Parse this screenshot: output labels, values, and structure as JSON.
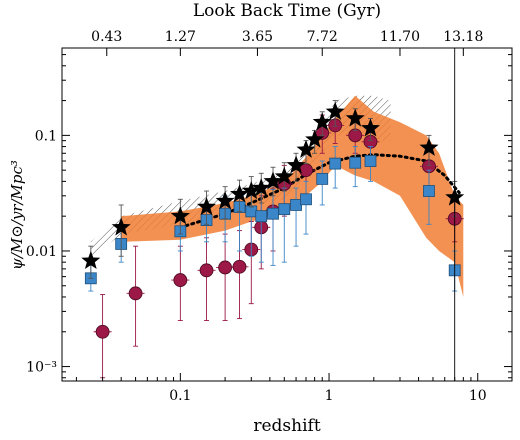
{
  "chart_data": {
    "type": "scatter",
    "xlabel": "redshift",
    "top_axis_label": "Look Back Time (Gyr)",
    "ylabel": "ψ/M⊙/yr/Mpc³",
    "x_scale": "log",
    "y_scale": "log",
    "xlim": [
      0.016,
      17
    ],
    "ylim": [
      0.00075,
      0.57
    ],
    "x_ticks": [
      0.1,
      1,
      10
    ],
    "x_tick_labels": [
      "0.1",
      "1",
      "10"
    ],
    "y_ticks": [
      0.001,
      0.01,
      0.1
    ],
    "y_tick_labels": [
      "10⁻³",
      "0.01",
      "0.1"
    ],
    "top_ticks": [
      {
        "z": 0.032,
        "label": "0.43"
      },
      {
        "z": 0.1,
        "label": "1.27"
      },
      {
        "z": 0.33,
        "label": "3.65"
      },
      {
        "z": 0.9,
        "label": "7.72"
      },
      {
        "z": 3.0,
        "label": "11.70"
      },
      {
        "z": 8.0,
        "label": "13.18"
      }
    ],
    "vertical_line_z": 7.0,
    "colors": {
      "stars": "#000000",
      "squares": "#3a86c8",
      "square_edge": "#1f4f7a",
      "circles": "#9c1846",
      "circle_edge": "#4a0a22",
      "orange_band": "#f07e34",
      "hatch": "#555555",
      "dotted_curve": "#000000"
    },
    "series": [
      {
        "marker": "star",
        "points": [
          {
            "x": 0.025,
            "y": 0.0082,
            "ylo": 0.0058,
            "yhi": 0.011
          },
          {
            "x": 0.04,
            "y": 0.016,
            "ylo": 0.009,
            "yhi": 0.025
          },
          {
            "x": 0.1,
            "y": 0.02,
            "ylo": 0.014,
            "yhi": 0.028
          },
          {
            "x": 0.15,
            "y": 0.024,
            "ylo": 0.017,
            "yhi": 0.033
          },
          {
            "x": 0.2,
            "y": 0.027,
            "ylo": 0.019,
            "yhi": 0.036
          },
          {
            "x": 0.25,
            "y": 0.031,
            "ylo": 0.022,
            "yhi": 0.041
          },
          {
            "x": 0.3,
            "y": 0.033,
            "ylo": 0.024,
            "yhi": 0.044
          },
          {
            "x": 0.35,
            "y": 0.035,
            "ylo": 0.026,
            "yhi": 0.047
          },
          {
            "x": 0.42,
            "y": 0.04,
            "ylo": 0.03,
            "yhi": 0.053
          },
          {
            "x": 0.5,
            "y": 0.044,
            "ylo": 0.033,
            "yhi": 0.058
          },
          {
            "x": 0.6,
            "y": 0.055,
            "ylo": 0.04,
            "yhi": 0.07
          },
          {
            "x": 0.7,
            "y": 0.075,
            "ylo": 0.057,
            "yhi": 0.09
          },
          {
            "x": 0.8,
            "y": 0.092,
            "ylo": 0.07,
            "yhi": 0.11
          },
          {
            "x": 0.9,
            "y": 0.13,
            "ylo": 0.1,
            "yhi": 0.16
          },
          {
            "x": 1.1,
            "y": 0.16,
            "ylo": 0.12,
            "yhi": 0.2
          },
          {
            "x": 1.5,
            "y": 0.14,
            "ylo": 0.11,
            "yhi": 0.17
          },
          {
            "x": 1.9,
            "y": 0.115,
            "ylo": 0.09,
            "yhi": 0.14
          },
          {
            "x": 4.7,
            "y": 0.078,
            "ylo": 0.055,
            "yhi": 0.1
          },
          {
            "x": 7.0,
            "y": 0.029,
            "ylo": 0.02,
            "yhi": 0.04
          }
        ]
      },
      {
        "marker": "square",
        "points": [
          {
            "x": 0.025,
            "y": 0.0058,
            "ylo": 0.0045,
            "yhi": 0.0075
          },
          {
            "x": 0.04,
            "y": 0.0115,
            "ylo": 0.008,
            "yhi": 0.016
          },
          {
            "x": 0.1,
            "y": 0.0148,
            "ylo": 0.01,
            "yhi": 0.021
          },
          {
            "x": 0.15,
            "y": 0.0185,
            "ylo": 0.012,
            "yhi": 0.026
          },
          {
            "x": 0.2,
            "y": 0.021,
            "ylo": 0.012,
            "yhi": 0.03
          },
          {
            "x": 0.25,
            "y": 0.024,
            "ylo": 0.01,
            "yhi": 0.034
          },
          {
            "x": 0.3,
            "y": 0.022,
            "ylo": 0.009,
            "yhi": 0.034
          },
          {
            "x": 0.35,
            "y": 0.02,
            "ylo": 0.008,
            "yhi": 0.032
          },
          {
            "x": 0.42,
            "y": 0.021,
            "ylo": 0.0075,
            "yhi": 0.034
          },
          {
            "x": 0.5,
            "y": 0.023,
            "ylo": 0.008,
            "yhi": 0.035
          },
          {
            "x": 0.6,
            "y": 0.025,
            "ylo": 0.011,
            "yhi": 0.035
          },
          {
            "x": 0.7,
            "y": 0.028,
            "ylo": 0.014,
            "yhi": 0.04
          },
          {
            "x": 0.9,
            "y": 0.042,
            "ylo": 0.025,
            "yhi": 0.06
          },
          {
            "x": 1.1,
            "y": 0.057,
            "ylo": 0.035,
            "yhi": 0.08
          },
          {
            "x": 1.5,
            "y": 0.058,
            "ylo": 0.036,
            "yhi": 0.08
          },
          {
            "x": 1.9,
            "y": 0.06,
            "ylo": 0.04,
            "yhi": 0.08
          },
          {
            "x": 4.7,
            "y": 0.033,
            "ylo": 0.017,
            "yhi": 0.05
          },
          {
            "x": 7.0,
            "y": 0.0068,
            "ylo": 0.0045,
            "yhi": 0.01
          }
        ]
      },
      {
        "marker": "circle",
        "points": [
          {
            "x": 0.03,
            "y": 0.002,
            "ylo": 0.0008,
            "yhi": 0.0042
          },
          {
            "x": 0.05,
            "y": 0.0043,
            "ylo": 0.0015,
            "yhi": 0.011
          },
          {
            "x": 0.1,
            "y": 0.0056,
            "ylo": 0.0025,
            "yhi": 0.011
          },
          {
            "x": 0.15,
            "y": 0.0068,
            "ylo": 0.0025,
            "yhi": 0.013
          },
          {
            "x": 0.2,
            "y": 0.0072,
            "ylo": 0.0025,
            "yhi": 0.014
          },
          {
            "x": 0.25,
            "y": 0.0073,
            "ylo": 0.0026,
            "yhi": 0.015
          },
          {
            "x": 0.3,
            "y": 0.0103,
            "ylo": 0.0035,
            "yhi": 0.018
          },
          {
            "x": 0.35,
            "y": 0.016,
            "ylo": 0.007,
            "yhi": 0.03
          },
          {
            "x": 0.42,
            "y": 0.022,
            "ylo": 0.01,
            "yhi": 0.035
          },
          {
            "x": 0.5,
            "y": 0.038,
            "ylo": 0.02,
            "yhi": 0.055
          },
          {
            "x": 0.7,
            "y": 0.05,
            "ylo": 0.03,
            "yhi": 0.07
          },
          {
            "x": 0.9,
            "y": 0.105,
            "ylo": 0.07,
            "yhi": 0.15
          },
          {
            "x": 1.1,
            "y": 0.122,
            "ylo": 0.085,
            "yhi": 0.17
          },
          {
            "x": 1.5,
            "y": 0.1,
            "ylo": 0.07,
            "yhi": 0.14
          },
          {
            "x": 1.9,
            "y": 0.088,
            "ylo": 0.06,
            "yhi": 0.12
          },
          {
            "x": 4.7,
            "y": 0.054,
            "ylo": 0.035,
            "yhi": 0.08
          },
          {
            "x": 7.0,
            "y": 0.019,
            "ylo": 0.012,
            "yhi": 0.028
          }
        ]
      }
    ],
    "dotted_curve": [
      {
        "x": 0.1,
        "y": 0.016
      },
      {
        "x": 0.2,
        "y": 0.021
      },
      {
        "x": 0.3,
        "y": 0.026
      },
      {
        "x": 0.5,
        "y": 0.035
      },
      {
        "x": 0.7,
        "y": 0.046
      },
      {
        "x": 1.0,
        "y": 0.058
      },
      {
        "x": 1.5,
        "y": 0.066
      },
      {
        "x": 2.0,
        "y": 0.068
      },
      {
        "x": 3.0,
        "y": 0.066
      },
      {
        "x": 4.5,
        "y": 0.06
      },
      {
        "x": 6.0,
        "y": 0.045
      },
      {
        "x": 7.5,
        "y": 0.032
      }
    ],
    "hatched_band": {
      "x": [
        0.025,
        0.04,
        0.1,
        0.2,
        0.3,
        0.5,
        0.7,
        0.9,
        1.1,
        1.5,
        2.0,
        2.6
      ],
      "lo": [
        0.0085,
        0.014,
        0.017,
        0.021,
        0.024,
        0.028,
        0.045,
        0.07,
        0.1,
        0.1,
        0.09,
        0.09
      ],
      "hi": [
        0.012,
        0.02,
        0.027,
        0.033,
        0.038,
        0.048,
        0.075,
        0.12,
        0.2,
        0.22,
        0.22,
        0.2
      ]
    },
    "orange_band": {
      "x": [
        0.04,
        0.1,
        0.2,
        0.3,
        0.4,
        0.55,
        0.7,
        0.9,
        1.1,
        1.5,
        2.0,
        3.0,
        4.5,
        5.5,
        7.0,
        8.0
      ],
      "lo": [
        0.012,
        0.0125,
        0.015,
        0.018,
        0.02,
        0.023,
        0.03,
        0.04,
        0.055,
        0.045,
        0.04,
        0.03,
        0.013,
        0.01,
        0.008,
        0.004
      ],
      "hi": [
        0.02,
        0.022,
        0.026,
        0.03,
        0.035,
        0.045,
        0.065,
        0.1,
        0.14,
        0.22,
        0.16,
        0.13,
        0.1,
        0.07,
        0.03,
        0.025
      ]
    }
  }
}
